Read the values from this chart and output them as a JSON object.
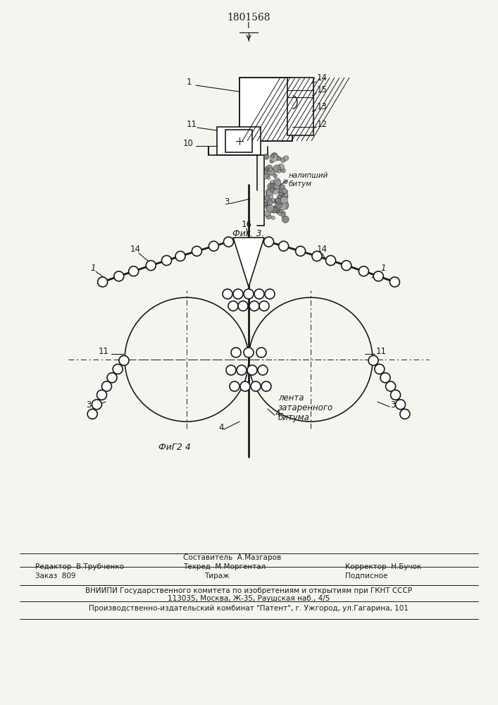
{
  "title": "1801568",
  "fig3_label": "Фиг. 3.",
  "fig4_label": "ФиΓ2 4",
  "nalipshiy_line1": "налипший",
  "nalipshiy_line2": "битум",
  "lenta_line1": "лента",
  "lenta_line2": "затаренного",
  "lenta_line3": "битума",
  "editor_line": "Редактор  В.Трубченко",
  "sostavitel_line": "Составитель  А.Мазгаров",
  "tehred_line": "Техред  М.Моргентал",
  "korrektor_line": "Корректор  Н.Бучок",
  "zakaz_line": "Заказ  809",
  "tirazh_line": "Тираж",
  "podpisnoe_line": "Подписное",
  "vniiipi_line": "ВНИИПИ Государственного комитета по изобретениям и открытиям при ГКНТ СССР",
  "address_line": "113035, Москва, Ж-35, Раушская наб., 4/5",
  "proizv_line": "Производственно-издательский комбинат \"Патент\", г. Ужгород, ул.Гагарина, 101",
  "bg_color": "#f5f5f0"
}
